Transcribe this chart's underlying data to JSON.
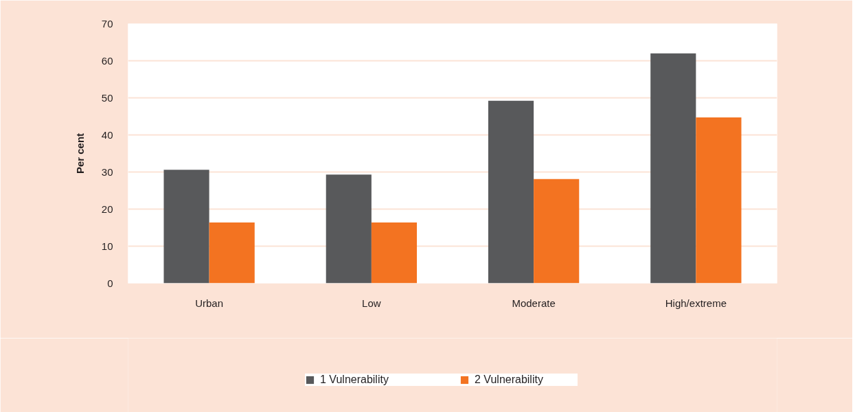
{
  "chart_data": {
    "type": "bar",
    "ylabel": "Per cent",
    "categories": [
      "Urban",
      "Low",
      "Moderate",
      "High/extreme"
    ],
    "series": [
      {
        "name": "1 Vulnerability",
        "color": "#58595b",
        "values": [
          30.6,
          29.3,
          49.2,
          62.0
        ]
      },
      {
        "name": "2 Vulnerability",
        "color": "#f37321",
        "values": [
          16.4,
          16.4,
          28.1,
          44.7
        ]
      }
    ],
    "ylim": [
      0,
      70
    ],
    "yticks": [
      0,
      10,
      20,
      30,
      40,
      50,
      60,
      70
    ],
    "grid": "y",
    "legend": "bottom"
  }
}
